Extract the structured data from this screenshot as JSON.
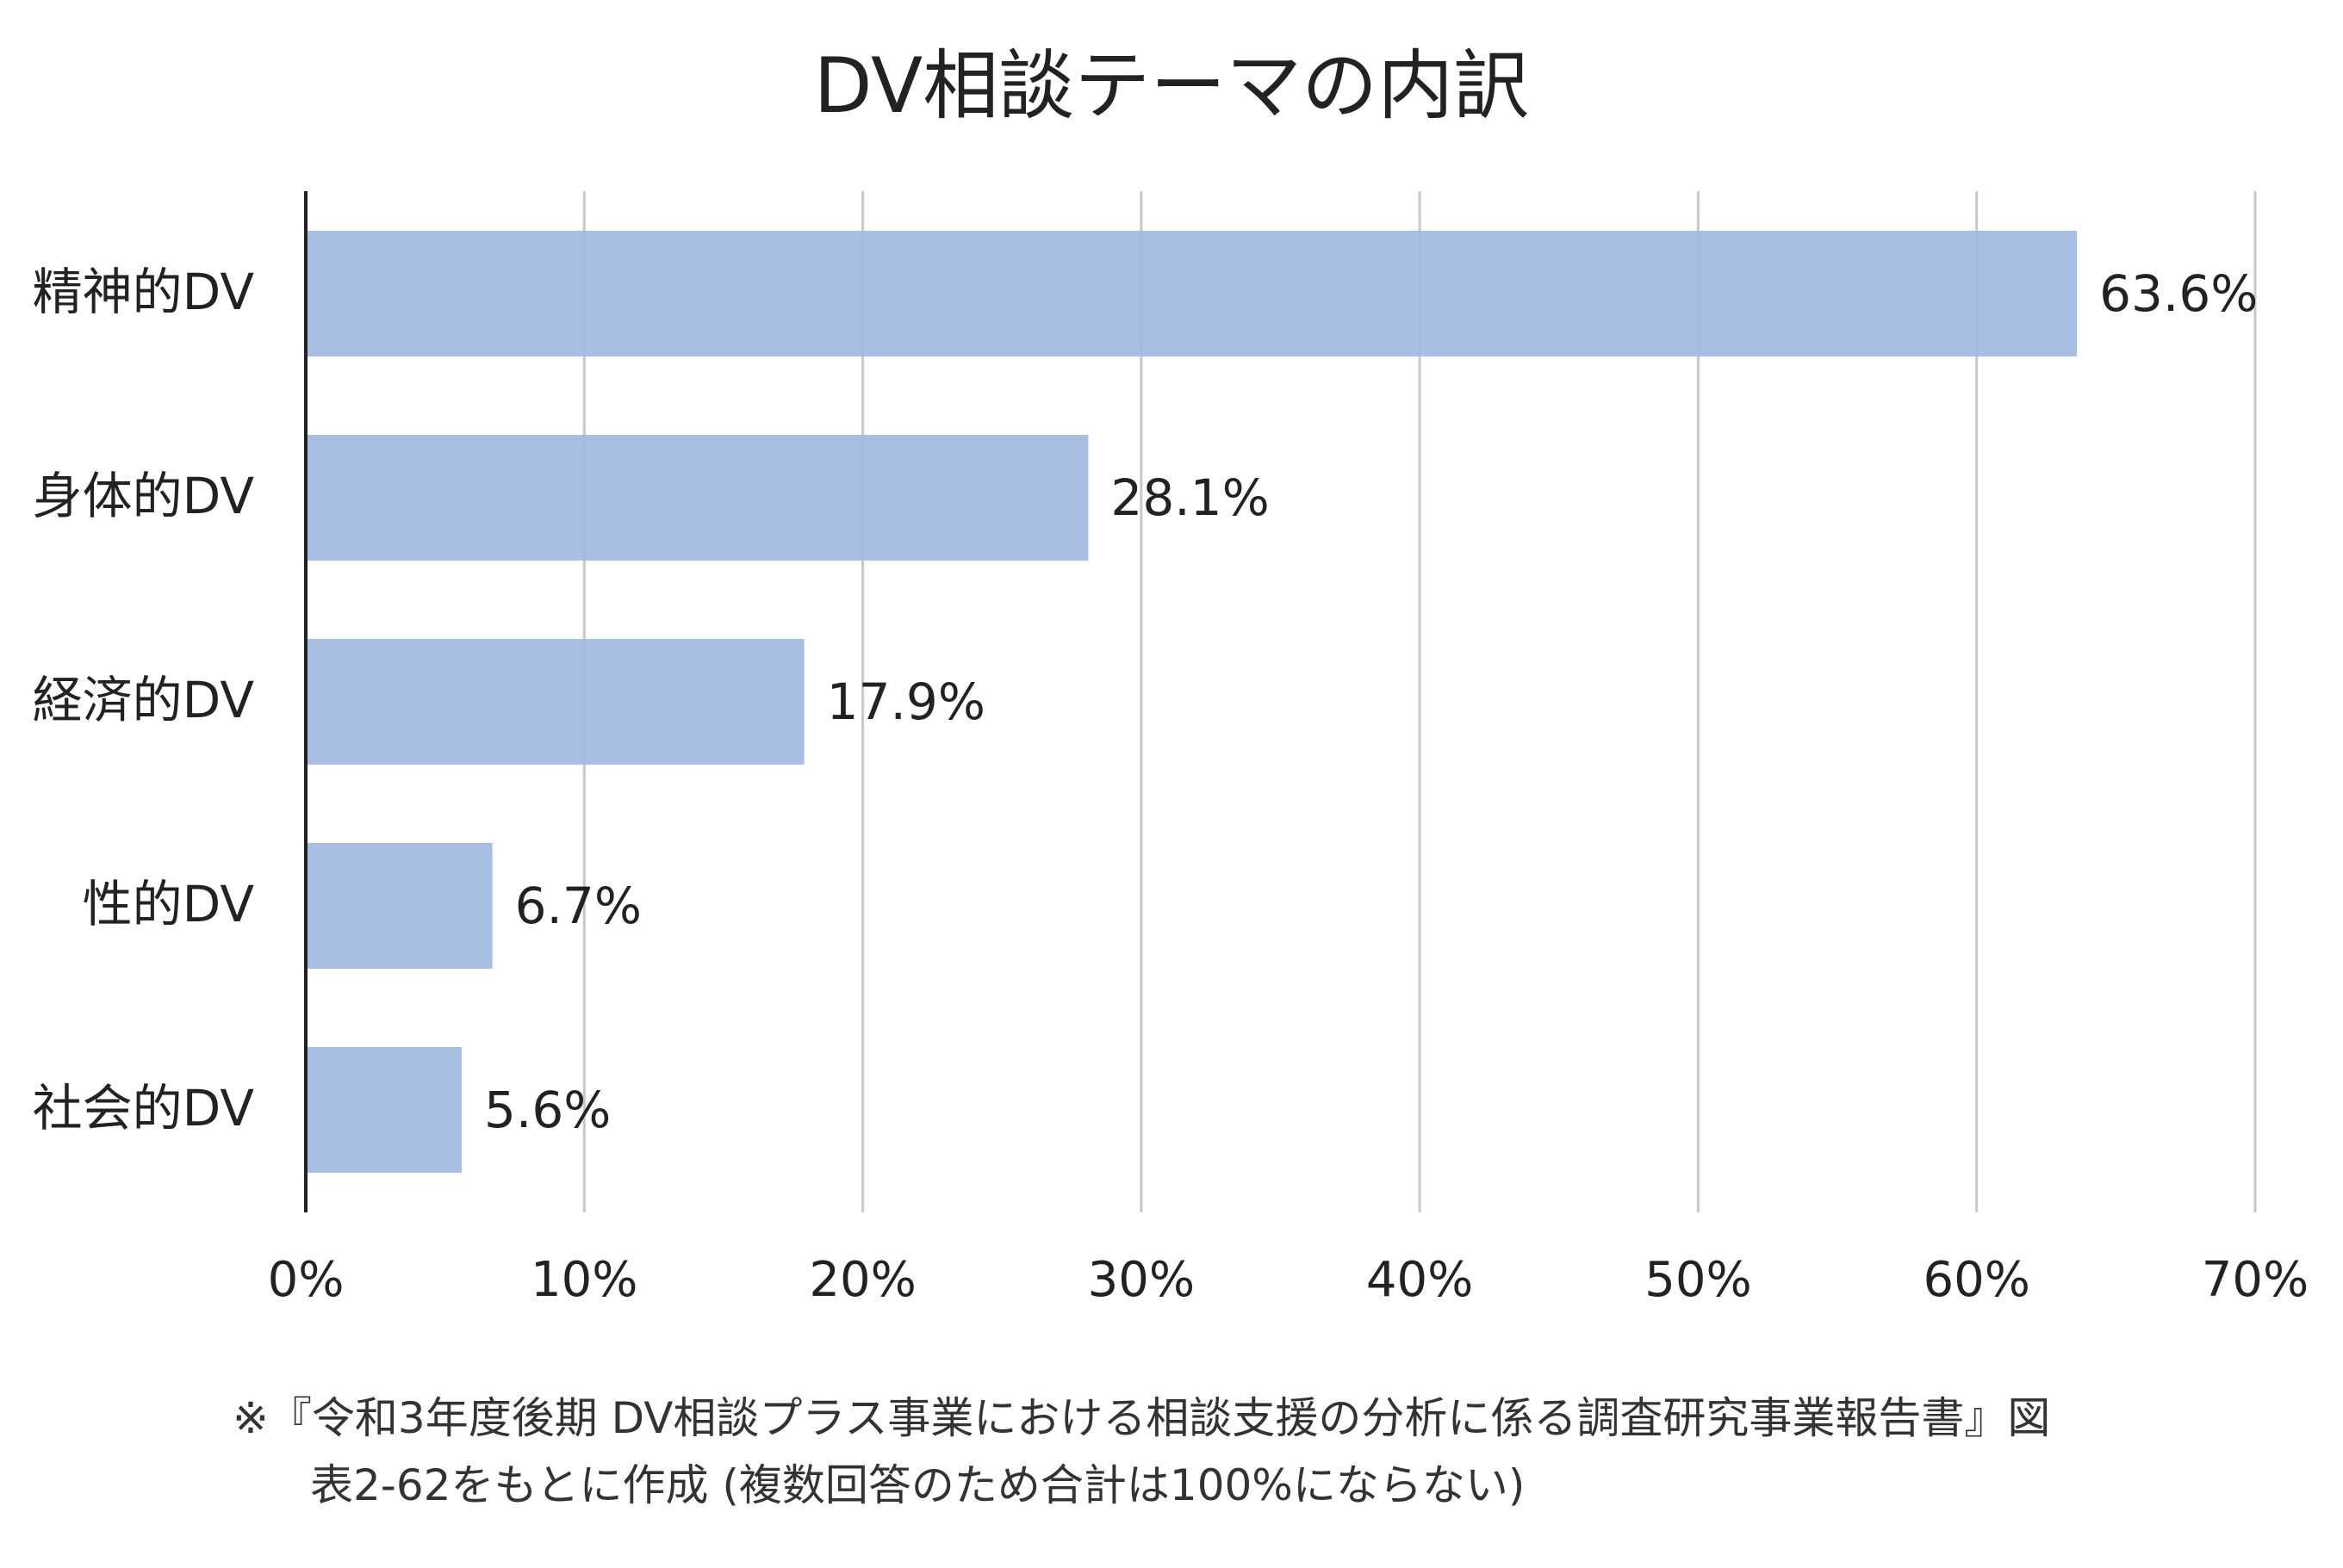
{
  "chart_data": {
    "type": "bar",
    "orientation": "horizontal",
    "title": "DV相談テーマの内訳",
    "categories": [
      "精神的DV",
      "身体的DV",
      "経済的DV",
      "性的DV",
      "社会的DV"
    ],
    "values": [
      63.6,
      28.1,
      17.9,
      6.7,
      5.6
    ],
    "value_labels": [
      "63.6%",
      "28.1%",
      "17.9%",
      "6.7%",
      "5.6%"
    ],
    "xlim": [
      0,
      70
    ],
    "x_ticks": [
      0,
      10,
      20,
      30,
      40,
      50,
      60,
      70
    ],
    "x_tick_labels": [
      "0%",
      "10%",
      "20%",
      "30%",
      "40%",
      "50%",
      "60%",
      "70%"
    ],
    "grid": "vertical",
    "bar_color": "#a2b8e1",
    "grid_color": "#c8c8c8",
    "axis_color": "#222222"
  },
  "footnote": {
    "line1": "※『令和3年度後期 DV相談プラス事業における相談支援の分析に係る調査研究事業報告書』図",
    "line2": "表2-62をもとに作成 (複数回答のため合計は100%にならない)"
  }
}
